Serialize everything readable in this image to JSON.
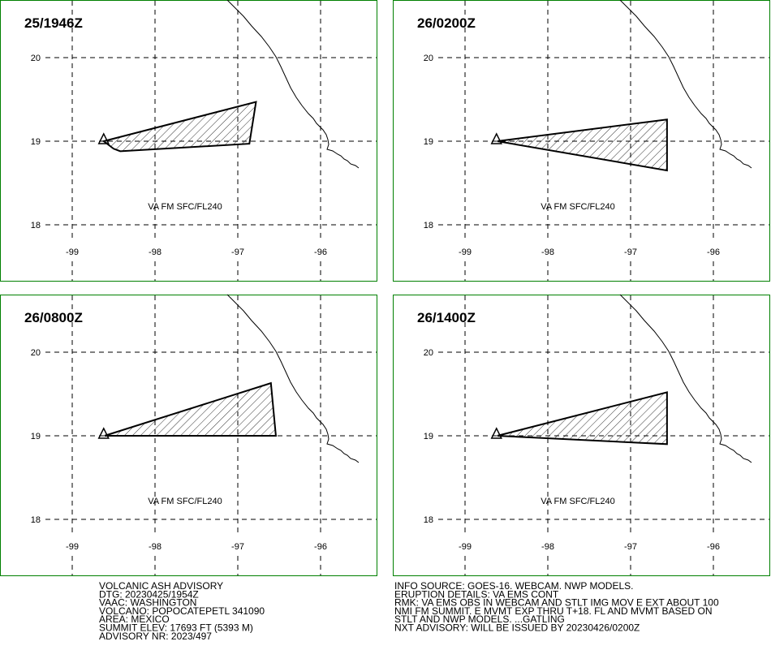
{
  "panels": [
    {
      "time": "25/1946Z",
      "label": "VA FM SFC/FL240",
      "ash_polygon": {
        "lon": [
          -98.62,
          -96.78,
          -96.86,
          -98.42,
          -98.5
        ],
        "lat": [
          19.0,
          19.47,
          18.97,
          18.88,
          18.91
        ]
      }
    },
    {
      "time": "26/0200Z",
      "label": "VA FM SFC/FL240",
      "ash_polygon": {
        "lon": [
          -98.61,
          -96.56,
          -96.56
        ],
        "lat": [
          19.0,
          19.26,
          18.65
        ]
      }
    },
    {
      "time": "26/0800Z",
      "label": "VA FM SFC/FL240",
      "ash_polygon": {
        "lon": [
          -98.61,
          -96.6,
          -96.54
        ],
        "lat": [
          19.0,
          19.63,
          19.0
        ]
      }
    },
    {
      "time": "26/1400Z",
      "label": "VA FM SFC/FL240",
      "ash_polygon": {
        "lon": [
          -98.61,
          -96.56,
          -96.56
        ],
        "lat": [
          19.0,
          19.52,
          18.9
        ]
      }
    }
  ],
  "lat_ticks": [
    20,
    19,
    18
  ],
  "lon_ticks": [
    -99,
    -98,
    -97,
    -96
  ],
  "volcano": {
    "lon": [
      -98.62
    ],
    "lat": [
      19.02
    ]
  },
  "advisory_left": [
    "VOLCANIC ASH ADVISORY",
    "DTG: 20230425/1954Z",
    "VAAC: WASHINGTON",
    "VOLCANO: POPOCATEPETL 341090",
    "AREA: MEXICO",
    "SUMMIT ELEV: 17693 FT (5393 M)",
    "ADVISORY NR: 2023/497"
  ],
  "advisory_right": [
    "INFO SOURCE: GOES-16. WEBCAM. NWP MODELS.",
    "ERUPTION DETAILS: VA EMS CONT",
    "RMK: VA EMS OBS IN WEBCAM AND STLT IMG MOV E EXT ABOUT 100",
    "NMI FM SUMMIT. E MVMT EXP THRU T+18. FL AND MVMT BASED ON",
    "STLT AND NWP MODELS. ...GATLING",
    "NXT ADVISORY: WILL BE ISSUED BY 20230426/0200Z"
  ]
}
